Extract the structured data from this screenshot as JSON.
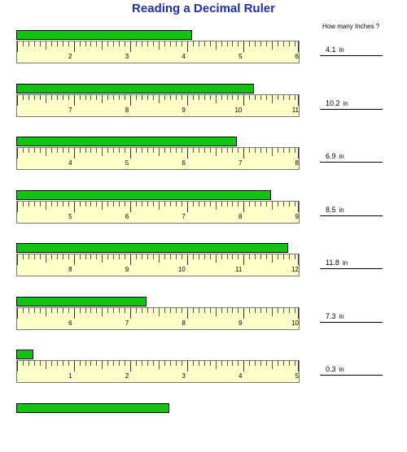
{
  "title": "Reading a Decimal Ruler",
  "column_header": "How many Inches ?",
  "colors": {
    "bar": "#11c411",
    "ruler": "#fffdc8",
    "title": "#1f2fa8"
  },
  "problems": [
    {
      "labels": [
        "2",
        "3",
        "4",
        "5",
        "6"
      ],
      "answer": "4.1",
      "unit": "in",
      "bar_inches": 3.1
    },
    {
      "labels": [
        "7",
        "8",
        "9",
        "10",
        "11"
      ],
      "answer": "10.2",
      "unit": "in",
      "bar_inches": 4.2
    },
    {
      "labels": [
        "4",
        "5",
        "6",
        "7",
        "8"
      ],
      "answer": "6.9",
      "unit": "in",
      "bar_inches": 3.9
    },
    {
      "labels": [
        "5",
        "6",
        "7",
        "8",
        "9"
      ],
      "answer": "8.5",
      "unit": "in",
      "bar_inches": 4.5
    },
    {
      "labels": [
        "8",
        "9",
        "10",
        "11",
        "12"
      ],
      "answer": "11.8",
      "unit": "in",
      "bar_inches": 4.8
    },
    {
      "labels": [
        "6",
        "7",
        "8",
        "9",
        "10"
      ],
      "answer": "7.3",
      "unit": "in",
      "bar_inches": 2.3
    },
    {
      "labels": [
        "1",
        "2",
        "3",
        "4",
        "5"
      ],
      "answer": "0.3",
      "unit": "in",
      "bar_inches": 0.3
    },
    {
      "bar_inches": 2.7
    }
  ]
}
